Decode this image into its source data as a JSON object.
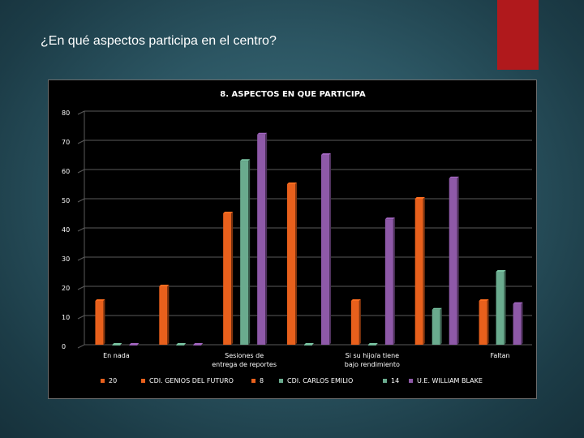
{
  "slide": {
    "title": "¿En qué aspectos participa en el centro?"
  },
  "colors": {
    "accent_block": "#b0191c",
    "series": [
      "#e8601c",
      "#6aab8e",
      "#8e59a8"
    ]
  },
  "chart_data": {
    "type": "bar",
    "title": "8. ASPECTOS EN QUE PARTICIPA",
    "xlabel": "",
    "ylabel": "",
    "ylim": [
      0,
      80
    ],
    "yticks": [
      0,
      10,
      20,
      30,
      40,
      50,
      60,
      70,
      80
    ],
    "grid": true,
    "legend_position": "bottom",
    "categories": [
      "En nada",
      "",
      "Sesiones de entrega de reportes",
      "",
      "Si su hijo/a tiene bajo rendimiento",
      "",
      "Faltan"
    ],
    "category_labels": [
      [
        "En nada"
      ],
      [],
      [
        "Sesiones de",
        "entrega de reportes"
      ],
      [],
      [
        "Si su hijo/a tiene",
        "bajo rendimiento"
      ],
      [],
      [
        "Faltan"
      ]
    ],
    "series": [
      {
        "name": "CDI. GENIOS DEL FUTURO",
        "color": "#e8601c",
        "values": [
          15,
          20,
          45,
          55,
          15,
          50,
          15
        ]
      },
      {
        "name": "CDI. CARLOS EMILIO",
        "color": "#6aab8e",
        "values": [
          0,
          0,
          63,
          0,
          0,
          12,
          25
        ]
      },
      {
        "name": "U.E. WILLIAM BLAKE",
        "color": "#8e59a8",
        "values": [
          0,
          0,
          72,
          65,
          43,
          57,
          14
        ]
      }
    ],
    "legend": [
      {
        "label": "20",
        "color": "#e8601c"
      },
      {
        "label": "CDI. GENIOS DEL FUTURO",
        "color": "#e8601c"
      },
      {
        "label": "8",
        "color": "#e8601c"
      },
      {
        "label": "CDI. CARLOS EMILIO",
        "color": "#6aab8e"
      },
      {
        "label": "14",
        "color": "#6aab8e"
      },
      {
        "label": "U.E. WILLIAM BLAKE",
        "color": "#8e59a8"
      }
    ]
  }
}
